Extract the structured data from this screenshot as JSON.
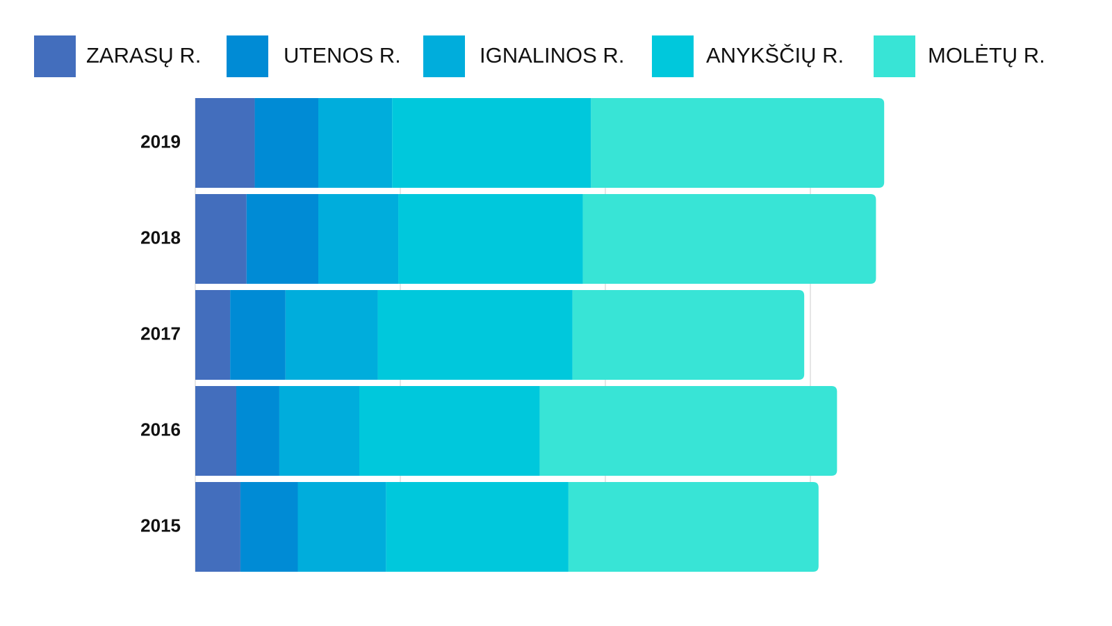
{
  "chart_data": {
    "type": "stacked-bar-horizontal",
    "categories": [
      "2019",
      "2018",
      "2017",
      "2016",
      "2015"
    ],
    "series": [
      {
        "name": "ZARASŲ R.",
        "color": "#436ebd",
        "values": [
          2.9,
          2.5,
          1.7,
          2.0,
          2.2
        ]
      },
      {
        "name": "UTENOS R.",
        "color": "#008bd5",
        "values": [
          3.1,
          3.5,
          2.7,
          2.1,
          2.8
        ]
      },
      {
        "name": "IGNALINOS R.",
        "color": "#00addc",
        "values": [
          3.6,
          3.9,
          4.5,
          3.9,
          4.3
        ]
      },
      {
        "name": "ANYKŠČIŲ R.",
        "color": "#00c8dc",
        "values": [
          9.7,
          9.0,
          9.5,
          8.8,
          8.9
        ]
      },
      {
        "name": "MOLĖTŲ R.",
        "color": "#38e4d6",
        "values": [
          14.3,
          14.3,
          11.3,
          14.5,
          12.2
        ]
      }
    ],
    "xlim": [
      0,
      40
    ],
    "xticks": [
      0,
      10,
      20,
      30
    ],
    "grid": true
  }
}
